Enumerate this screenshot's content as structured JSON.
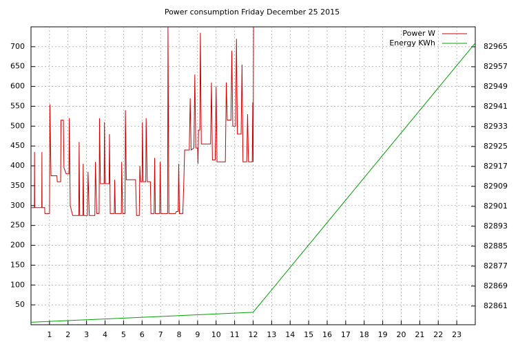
{
  "chart_data": {
    "type": "line",
    "title": "Power consumption Friday December 25 2015",
    "xlim": [
      0,
      24
    ],
    "xticks": [
      1,
      2,
      3,
      4,
      5,
      6,
      7,
      8,
      9,
      10,
      11,
      12,
      13,
      14,
      15,
      16,
      17,
      18,
      19,
      20,
      21,
      22,
      23
    ],
    "ylim": [
      0,
      750
    ],
    "yticks": [
      50,
      100,
      150,
      200,
      250,
      300,
      350,
      400,
      450,
      500,
      550,
      600,
      650,
      700
    ],
    "y2lim": [
      82853.5,
      82973
    ],
    "y2ticks": [
      82861,
      82869,
      82877,
      82885,
      82893,
      82901,
      82909,
      82917,
      82925,
      82933,
      82941,
      82949,
      82957,
      82965
    ],
    "grid": true,
    "legend": "top-right",
    "series": [
      {
        "name": "Power W",
        "color": "#cc0000",
        "x": [
          0,
          0.18,
          0.19,
          0.2,
          0.58,
          0.59,
          0.6,
          0.74,
          0.75,
          1.0,
          1.02,
          1.08,
          1.4,
          1.42,
          1.6,
          1.62,
          1.75,
          1.78,
          1.9,
          2.05,
          2.07,
          2.12,
          2.25,
          2.58,
          2.6,
          2.63,
          2.8,
          2.82,
          2.85,
          3.05,
          3.08,
          3.15,
          3.45,
          3.48,
          3.55,
          3.68,
          3.7,
          3.75,
          3.95,
          3.97,
          4.0,
          4.22,
          4.24,
          4.28,
          4.5,
          4.52,
          4.56,
          4.88,
          4.9,
          4.95,
          5.08,
          5.1,
          5.15,
          5.65,
          5.7,
          5.85,
          5.88,
          5.92,
          6.0,
          6.02,
          6.06,
          6.2,
          6.22,
          6.28,
          6.45,
          6.48,
          6.65,
          6.68,
          6.72,
          6.95,
          6.98,
          7.02,
          7.38,
          7.4,
          7.45,
          7.8,
          7.85,
          7.95,
          7.98,
          8.02,
          8.2,
          8.25,
          8.3,
          8.55,
          8.6,
          8.65,
          8.8,
          8.85,
          8.9,
          9.0,
          9.02,
          9.05,
          9.12,
          9.15,
          9.2,
          9.7,
          9.75,
          9.8,
          9.95,
          10.0,
          10.05,
          10.5,
          10.55,
          10.6,
          10.8,
          10.85,
          10.9,
          11.05,
          11.1,
          11.15,
          11.35,
          11.4,
          11.45,
          11.65,
          11.7,
          11.75,
          11.95,
          11.98,
          12.0,
          12.02
        ],
        "values": [
          295,
          295,
          435,
          295,
          295,
          435,
          295,
          295,
          280,
          280,
          555,
          375,
          375,
          360,
          360,
          515,
          515,
          395,
          380,
          380,
          520,
          300,
          275,
          275,
          460,
          275,
          275,
          405,
          275,
          275,
          385,
          275,
          275,
          410,
          280,
          280,
          520,
          355,
          355,
          510,
          355,
          355,
          480,
          280,
          280,
          365,
          280,
          280,
          410,
          280,
          280,
          540,
          365,
          365,
          275,
          275,
          400,
          360,
          360,
          510,
          360,
          360,
          520,
          360,
          360,
          280,
          280,
          420,
          280,
          280,
          410,
          280,
          280,
          750,
          280,
          280,
          285,
          285,
          405,
          280,
          280,
          350,
          440,
          440,
          570,
          440,
          445,
          630,
          445,
          445,
          405,
          490,
          490,
          735,
          455,
          455,
          610,
          415,
          415,
          600,
          410,
          410,
          610,
          515,
          515,
          690,
          500,
          500,
          720,
          480,
          480,
          655,
          410,
          410,
          530,
          410,
          410,
          560,
          410,
          750
        ]
      },
      {
        "name": "Energy KWh",
        "color": "#00a000",
        "axis": "y2",
        "x": [
          0,
          12,
          24
        ],
        "values": [
          82854.5,
          82858.5,
          82966.5
        ]
      }
    ]
  }
}
